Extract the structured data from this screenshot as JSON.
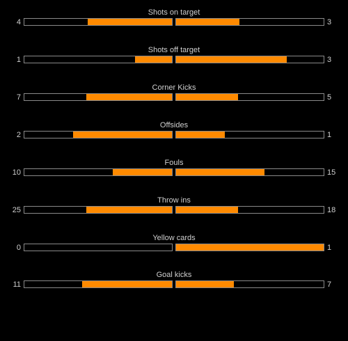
{
  "stats": [
    {
      "label": "Shots on target",
      "home": 4,
      "away": 3,
      "home_fill": 0.57,
      "away_fill": 0.43
    },
    {
      "label": "Shots off target",
      "home": 1,
      "away": 3,
      "home_fill": 0.25,
      "away_fill": 0.75
    },
    {
      "label": "Corner Kicks",
      "home": 7,
      "away": 5,
      "home_fill": 0.58,
      "away_fill": 0.42
    },
    {
      "label": "Offsides",
      "home": 2,
      "away": 1,
      "home_fill": 0.67,
      "away_fill": 0.33
    },
    {
      "label": "Fouls",
      "home": 10,
      "away": 15,
      "home_fill": 0.4,
      "away_fill": 0.6
    },
    {
      "label": "Throw ins",
      "home": 25,
      "away": 18,
      "home_fill": 0.58,
      "away_fill": 0.42
    },
    {
      "label": "Yellow cards",
      "home": 0,
      "away": 1,
      "home_fill": 0.0,
      "away_fill": 1.0
    },
    {
      "label": "Goal kicks",
      "home": 11,
      "away": 7,
      "home_fill": 0.61,
      "away_fill": 0.39
    }
  ],
  "colors": {
    "fill": "#ff8a00",
    "bar_border": "#8a8a8a",
    "background": "#000000",
    "text": "#d0d0d0"
  }
}
